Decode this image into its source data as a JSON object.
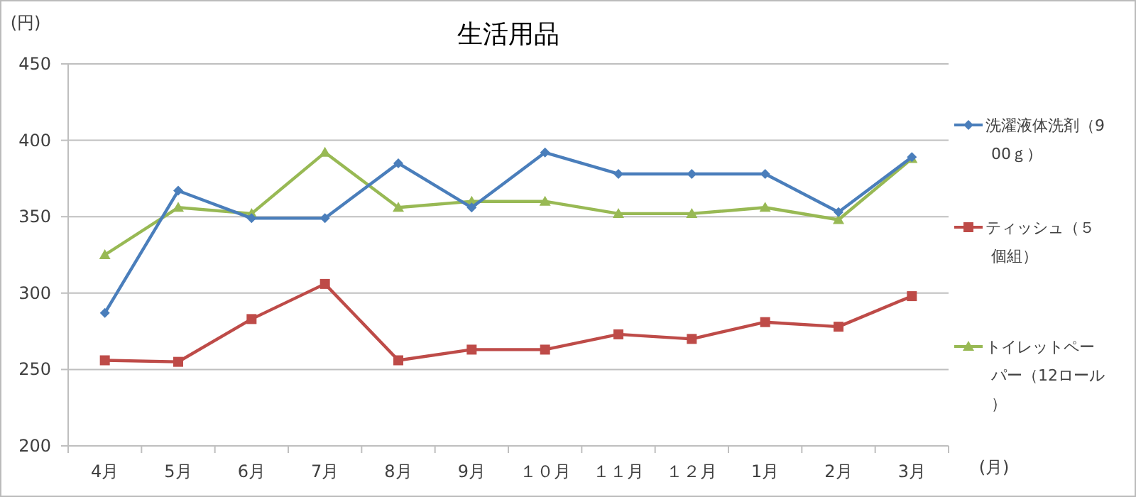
{
  "chart_data": {
    "type": "line",
    "title": "生活用品",
    "ylabel": "(円)",
    "xlabel": "(月)",
    "categories": [
      "4月",
      "5月",
      "6月",
      "7月",
      "8月",
      "9月",
      "１０月",
      "１１月",
      "１２月",
      "1月",
      "2月",
      "3月"
    ],
    "series": [
      {
        "name": "洗濯液体洗剤（900ｇ）",
        "color": "#4a7ebb",
        "marker": "diamond",
        "values": [
          287,
          367,
          349,
          349,
          385,
          356,
          392,
          378,
          378,
          378,
          353,
          389
        ]
      },
      {
        "name": "ティッシュ（５個組）",
        "color": "#be4b48",
        "marker": "square",
        "values": [
          256,
          255,
          283,
          306,
          256,
          263,
          263,
          273,
          270,
          281,
          278,
          298
        ]
      },
      {
        "name": "トイレットペーパー（12ロール）",
        "color": "#98b954",
        "marker": "triangle",
        "values": [
          325,
          356,
          352,
          392,
          356,
          360,
          360,
          352,
          352,
          356,
          348,
          388
        ]
      }
    ],
    "ylim": [
      200,
      450
    ],
    "yticks": [
      200,
      250,
      300,
      350,
      400,
      450
    ],
    "grid": "y",
    "legend": "right",
    "line_style": "solid"
  }
}
